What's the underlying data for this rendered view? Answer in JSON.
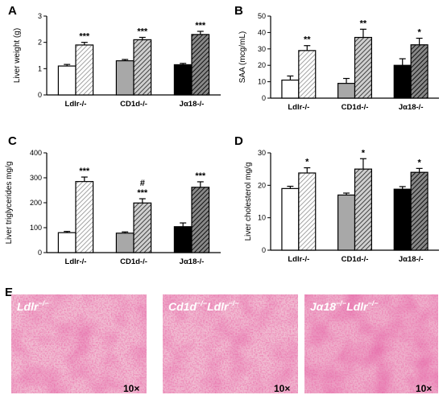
{
  "colors": {
    "ldlr": "#ffffff",
    "cd1d": "#a8a8a8",
    "ja18": "#000000",
    "hatch_light": "#9a9a9a",
    "hatch_dark": "#3a3a3a",
    "tissue_base": "#e8a8c4",
    "tissue_dark": "#c0306a"
  },
  "panel_letters": [
    "A",
    "B",
    "C",
    "D",
    "E"
  ],
  "chart_data": [
    {
      "panel": "A",
      "type": "bar",
      "ylabel": "Liver weight (g)",
      "ylim": [
        0,
        3
      ],
      "yticks": [
        "0",
        "1",
        "2",
        "3"
      ],
      "categories": [
        "Ldlr-/-",
        "CD1d-/-",
        "Jα18-/-"
      ],
      "series": [
        {
          "values": [
            1.1,
            1.3,
            1.15
          ],
          "errors": [
            0.06,
            0.05,
            0.05
          ],
          "style": "solid"
        },
        {
          "values": [
            1.9,
            2.1,
            2.3
          ],
          "errors": [
            0.1,
            0.09,
            0.12
          ],
          "style": "hatched"
        }
      ],
      "significance": [
        [
          "",
          "***"
        ],
        [
          "",
          "***"
        ],
        [
          "",
          "***"
        ]
      ]
    },
    {
      "panel": "B",
      "type": "bar",
      "ylabel": "SAA (mcg/mL)",
      "ylim": [
        0,
        50
      ],
      "yticks": [
        "0",
        "10",
        "20",
        "30",
        "40",
        "50"
      ],
      "categories": [
        "Ldlr-/-",
        "CD1d-/-",
        "Jα18-/-"
      ],
      "series": [
        {
          "values": [
            11,
            9,
            20
          ],
          "errors": [
            2.5,
            3,
            4
          ],
          "style": "solid"
        },
        {
          "values": [
            29,
            37,
            32.5
          ],
          "errors": [
            3,
            5,
            4
          ],
          "style": "hatched"
        }
      ],
      "significance": [
        [
          "",
          "**"
        ],
        [
          "",
          "**"
        ],
        [
          "",
          "*"
        ]
      ]
    },
    {
      "panel": "C",
      "type": "bar",
      "ylabel": "Liver triglycerides mg/g",
      "ylim": [
        0,
        400
      ],
      "yticks": [
        "0",
        "100",
        "200",
        "300",
        "400"
      ],
      "categories": [
        "Ldlr-/-",
        "CD1d-/-",
        "Jα18-/-"
      ],
      "series": [
        {
          "values": [
            80,
            78,
            104
          ],
          "errors": [
            5,
            5,
            15
          ],
          "style": "solid"
        },
        {
          "values": [
            285,
            199,
            262
          ],
          "errors": [
            18,
            17,
            22
          ],
          "style": "hatched"
        }
      ],
      "significance": [
        [
          "",
          "***"
        ],
        [
          "",
          "#\n***"
        ],
        [
          "",
          "***"
        ]
      ]
    },
    {
      "panel": "D",
      "type": "bar",
      "ylabel": "Liver cholesterol mg/g",
      "ylim": [
        0,
        30
      ],
      "yticks": [
        "0",
        "10",
        "20",
        "30"
      ],
      "categories": [
        "Ldlr-/-",
        "CD1d-/-",
        "Jα18-/-"
      ],
      "series": [
        {
          "values": [
            19,
            17,
            18.8
          ],
          "errors": [
            0.7,
            0.6,
            0.8
          ],
          "style": "solid"
        },
        {
          "values": [
            23.8,
            25,
            24
          ],
          "errors": [
            1.6,
            3.2,
            1.2
          ],
          "style": "hatched"
        }
      ],
      "significance": [
        [
          "",
          "*"
        ],
        [
          "",
          "*"
        ],
        [
          "",
          "*"
        ]
      ]
    }
  ],
  "micrographs": [
    {
      "label_main": "Ldlr",
      "label_sup": "−/−",
      "magnification": "10×"
    },
    {
      "label_main": "Cd1d",
      "label_sup": "−/−",
      "label_main2": "Ldlr",
      "label_sup2": "−/−",
      "magnification": "10×"
    },
    {
      "label_main": "Jα18",
      "label_sup": "−/−",
      "label_main2": "Ldlr",
      "label_sup2": "−/−",
      "magnification": "10×"
    }
  ]
}
